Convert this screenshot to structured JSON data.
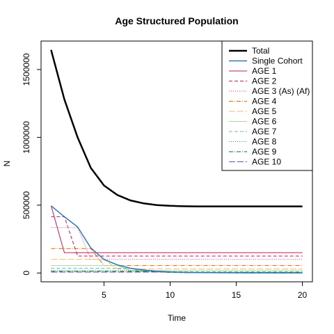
{
  "chart_data": {
    "type": "line",
    "title": "Age Structured Population",
    "xlabel": "Time",
    "ylabel": "N",
    "xlim": [
      1,
      20
    ],
    "ylim": [
      0,
      1700000
    ],
    "xticks": [
      5,
      10,
      15,
      20
    ],
    "yticks": [
      0,
      500000,
      1000000,
      1500000
    ],
    "xtick_labels": [
      "5",
      "10",
      "15",
      "20"
    ],
    "ytick_labels": [
      "0",
      "500000",
      "1000000",
      "1500000"
    ],
    "legend_position": "top-right",
    "x": [
      1,
      2,
      3,
      4,
      5,
      6,
      7,
      8,
      9,
      10,
      11,
      12,
      13,
      14,
      15,
      16,
      17,
      18,
      19,
      20
    ],
    "series": [
      {
        "name": "Total",
        "color": "#000000",
        "dash": "",
        "width": 2.5,
        "values": [
          1645000,
          1280000,
          1000000,
          775000,
          645000,
          575000,
          535000,
          513000,
          501000,
          495000,
          492000,
          491000,
          491000,
          491000,
          491000,
          491000,
          491000,
          491000,
          491000,
          491000
        ]
      },
      {
        "name": "Single Cohort",
        "color": "#2c7bb6",
        "dash": "",
        "width": 1.5,
        "values": [
          495000,
          415000,
          340000,
          185000,
          100000,
          60000,
          35000,
          22000,
          13000,
          8000,
          5000,
          3000,
          2000,
          1500,
          1000,
          800,
          600,
          500,
          400,
          300
        ]
      },
      {
        "name": "AGE 1",
        "color": "#c2185b",
        "dash": "",
        "width": 1,
        "values": [
          495000,
          150000,
          150000,
          150000,
          150000,
          150000,
          150000,
          150000,
          150000,
          150000,
          150000,
          150000,
          150000,
          150000,
          150000,
          150000,
          150000,
          150000,
          150000,
          150000
        ]
      },
      {
        "name": "AGE 2",
        "color": "#c2185b",
        "dash": "5,3",
        "width": 1,
        "values": [
          415000,
          415000,
          125000,
          125000,
          125000,
          125000,
          125000,
          125000,
          125000,
          125000,
          125000,
          125000,
          125000,
          125000,
          125000,
          125000,
          125000,
          125000,
          125000,
          125000
        ]
      },
      {
        "name": "AGE 3 (As) (Af)",
        "color": "#e7298a",
        "dash": "1,2",
        "width": 1,
        "values": [
          335000,
          335000,
          335000,
          100000,
          100000,
          100000,
          100000,
          100000,
          100000,
          100000,
          100000,
          100000,
          100000,
          100000,
          100000,
          100000,
          100000,
          100000,
          100000,
          100000
        ]
      },
      {
        "name": "AGE 4",
        "color": "#e66101",
        "dash": "6,2,1,2",
        "width": 1,
        "values": [
          180000,
          180000,
          180000,
          180000,
          55000,
          55000,
          55000,
          55000,
          55000,
          55000,
          55000,
          55000,
          55000,
          55000,
          55000,
          55000,
          55000,
          55000,
          55000,
          55000
        ]
      },
      {
        "name": "AGE 5",
        "color": "#fdb863",
        "dash": "9,3",
        "width": 1,
        "values": [
          100000,
          100000,
          100000,
          100000,
          100000,
          30000,
          30000,
          30000,
          30000,
          30000,
          30000,
          30000,
          30000,
          30000,
          30000,
          30000,
          30000,
          30000,
          30000,
          30000
        ]
      },
      {
        "name": "AGE 6",
        "color": "#a6dba0",
        "dash": "",
        "width": 1,
        "values": [
          55000,
          55000,
          55000,
          55000,
          55000,
          55000,
          17000,
          17000,
          17000,
          17000,
          17000,
          17000,
          17000,
          17000,
          17000,
          17000,
          17000,
          17000,
          17000,
          17000
        ]
      },
      {
        "name": "AGE 7",
        "color": "#66c2a5",
        "dash": "5,3",
        "width": 1,
        "values": [
          35000,
          35000,
          35000,
          35000,
          35000,
          35000,
          35000,
          10000,
          10000,
          10000,
          10000,
          10000,
          10000,
          10000,
          10000,
          10000,
          10000,
          10000,
          10000,
          10000
        ]
      },
      {
        "name": "AGE 8",
        "color": "#1b9e77",
        "dash": "1,2",
        "width": 1,
        "values": [
          20000,
          20000,
          20000,
          20000,
          20000,
          20000,
          20000,
          20000,
          6000,
          6000,
          6000,
          6000,
          6000,
          6000,
          6000,
          6000,
          6000,
          6000,
          6000,
          6000
        ]
      },
      {
        "name": "AGE 9",
        "color": "#006d2c",
        "dash": "6,2,1,2",
        "width": 1,
        "values": [
          12000,
          12000,
          12000,
          12000,
          12000,
          12000,
          12000,
          12000,
          12000,
          3500,
          3500,
          3500,
          3500,
          3500,
          3500,
          3500,
          3500,
          3500,
          3500,
          3500
        ]
      },
      {
        "name": "AGE 10",
        "color": "#6a51a3",
        "dash": "9,3",
        "width": 1,
        "values": [
          7000,
          7000,
          7000,
          7000,
          7000,
          7000,
          7000,
          7000,
          7000,
          7000,
          2000,
          2000,
          2000,
          2000,
          2000,
          2000,
          2000,
          2000,
          2000,
          2000
        ]
      }
    ]
  }
}
